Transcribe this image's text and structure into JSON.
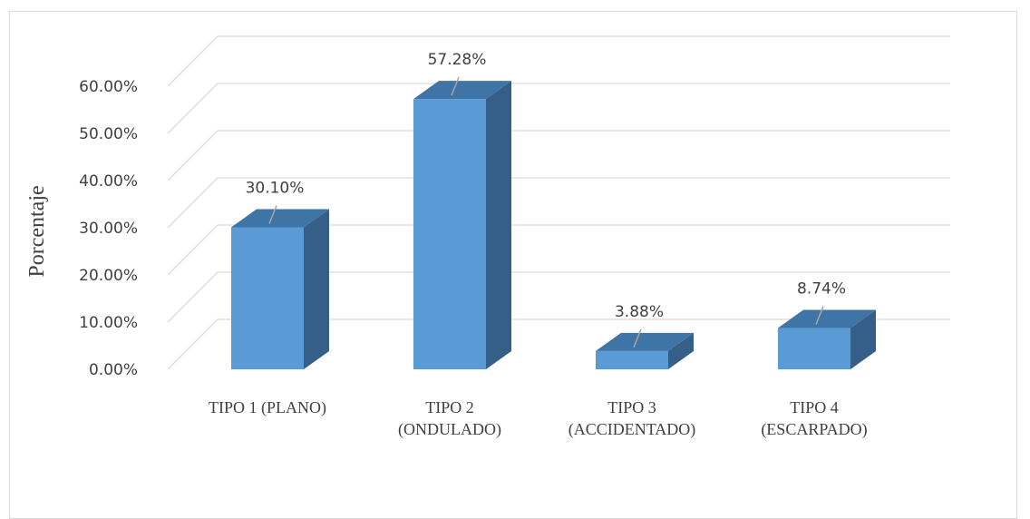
{
  "chart_data": {
    "type": "bar",
    "style": "3d-column",
    "categories": [
      [
        "TIPO 1 (PLANO)"
      ],
      [
        "TIPO 2",
        "(ONDULADO)"
      ],
      [
        "TIPO 3",
        "(ACCIDENTADO)"
      ],
      [
        "TIPO 4",
        "(ESCARPADO)"
      ]
    ],
    "values": [
      30.1,
      57.28,
      3.88,
      8.74
    ],
    "data_labels": [
      "30.10%",
      "57.28%",
      "3.88%",
      "8.74%"
    ],
    "yticks": [
      "0.00%",
      "10.00%",
      "20.00%",
      "30.00%",
      "40.00%",
      "50.00%",
      "60.00%"
    ],
    "ylim": [
      0,
      60
    ],
    "ylabel": "Porcentaje",
    "xlabel": "",
    "title": "",
    "grid": true,
    "legend": "none",
    "colors": {
      "bar_front": "#5B9BD5",
      "bar_top": "#3F74A6",
      "bar_side": "#355F88",
      "grid": "#d9d9d9",
      "text": "#404040"
    }
  }
}
